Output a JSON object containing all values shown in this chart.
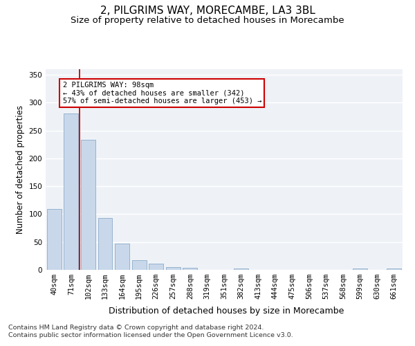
{
  "title": "2, PILGRIMS WAY, MORECAMBE, LA3 3BL",
  "subtitle": "Size of property relative to detached houses in Morecambe",
  "xlabel": "Distribution of detached houses by size in Morecambe",
  "ylabel": "Number of detached properties",
  "categories": [
    "40sqm",
    "71sqm",
    "102sqm",
    "133sqm",
    "164sqm",
    "195sqm",
    "226sqm",
    "257sqm",
    "288sqm",
    "319sqm",
    "351sqm",
    "382sqm",
    "413sqm",
    "444sqm",
    "475sqm",
    "506sqm",
    "537sqm",
    "568sqm",
    "599sqm",
    "630sqm",
    "661sqm"
  ],
  "values": [
    109,
    280,
    234,
    93,
    47,
    18,
    11,
    5,
    4,
    0,
    0,
    3,
    0,
    0,
    0,
    0,
    0,
    0,
    3,
    0,
    3
  ],
  "bar_color": "#c8d8ea",
  "bar_edge_color": "#8aaac8",
  "highlight_line_color": "#cc0000",
  "annotation_text": "2 PILGRIMS WAY: 98sqm\n← 43% of detached houses are smaller (342)\n57% of semi-detached houses are larger (453) →",
  "annotation_box_color": "#ffffff",
  "annotation_box_edge_color": "#cc0000",
  "ylim": [
    0,
    360
  ],
  "yticks": [
    0,
    50,
    100,
    150,
    200,
    250,
    300,
    350
  ],
  "footer_line1": "Contains HM Land Registry data © Crown copyright and database right 2024.",
  "footer_line2": "Contains public sector information licensed under the Open Government Licence v3.0.",
  "background_color": "#eef2f7",
  "grid_color": "#ffffff",
  "title_fontsize": 11,
  "subtitle_fontsize": 9.5,
  "axis_label_fontsize": 8.5,
  "tick_fontsize": 7.5,
  "footer_fontsize": 6.8,
  "annotation_fontsize": 7.5
}
